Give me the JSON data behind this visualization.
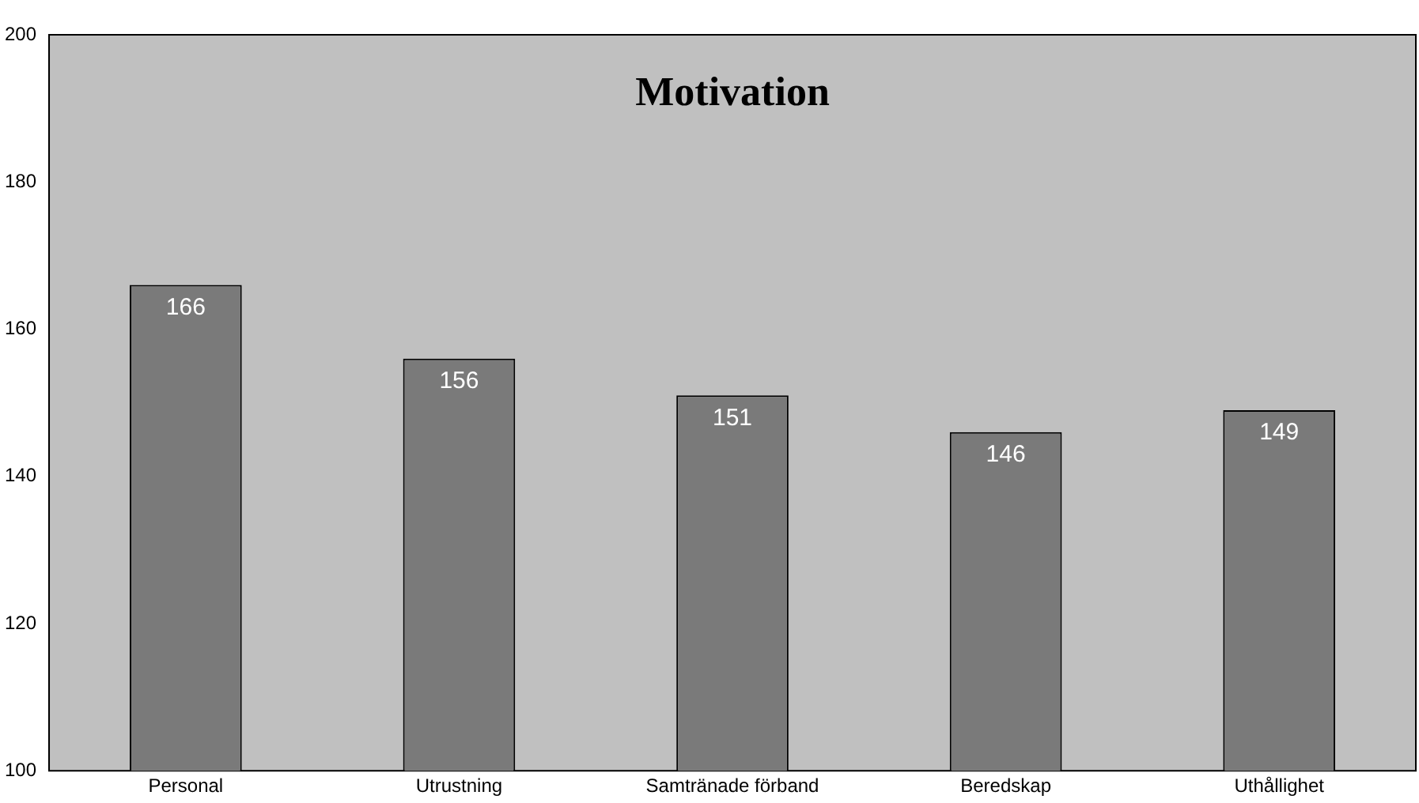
{
  "chart_data": {
    "type": "bar",
    "title": "Motivation",
    "categories": [
      "Personal",
      "Utrustning",
      "Samtränade förband",
      "Beredskap",
      "Uthållighet"
    ],
    "values": [
      166,
      156,
      151,
      146,
      149
    ],
    "color": "#7a7a7a",
    "ylim": [
      100,
      200
    ],
    "yticks": [
      100,
      120,
      140,
      160,
      180,
      200
    ],
    "grid": false,
    "data_labels": true,
    "legend": false
  }
}
